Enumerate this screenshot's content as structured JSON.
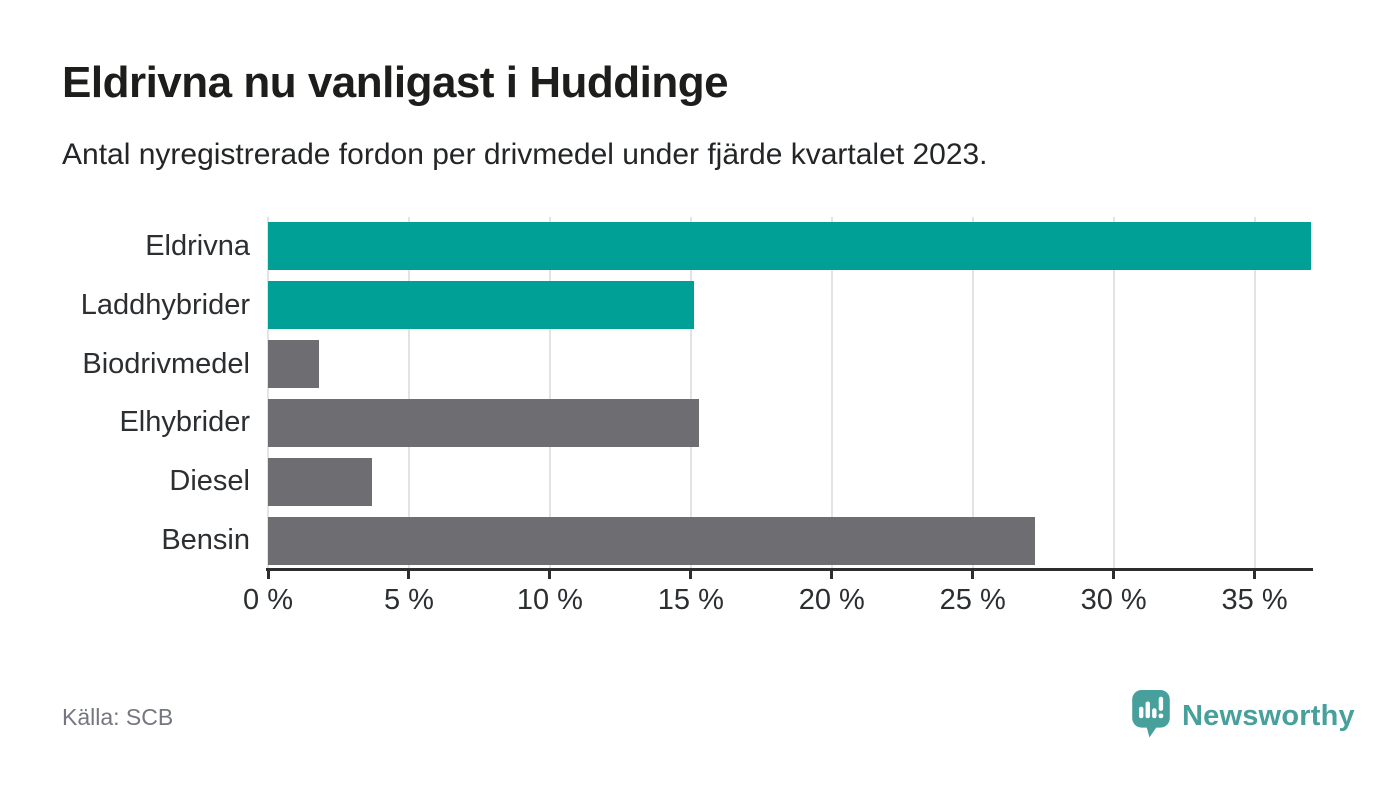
{
  "header": {
    "title": "Eldrivna nu vanligast i Huddinge",
    "subtitle": "Antal nyregistrerade fordon per drivmedel under fjärde kvartalet 2023."
  },
  "footer": {
    "source": "Källa: SCB",
    "brand": "Newsworthy"
  },
  "colors": {
    "electric_teal": "#00a096",
    "fossil_gray": "#6d6d72",
    "gridline": "#e3e3e3",
    "axis": "#2d2d2d",
    "brand_teal": "#47a09c"
  },
  "icons": {
    "brand_icon": "newsworthy-chart-bubble-icon"
  },
  "chart_data": {
    "type": "bar",
    "orientation": "horizontal",
    "title": "Eldrivna nu vanligast i Huddinge",
    "subtitle": "Antal nyregistrerade fordon per drivmedel under fjärde kvartalet 2023.",
    "categories": [
      "Eldrivna",
      "Laddhybrider",
      "Biodrivmedel",
      "Elhybrider",
      "Diesel",
      "Bensin"
    ],
    "values": [
      37.0,
      15.1,
      1.8,
      15.3,
      3.7,
      27.2
    ],
    "unit": "%",
    "bar_colors": [
      "#00a096",
      "#00a096",
      "#6d6d72",
      "#6d6d72",
      "#6d6d72",
      "#6d6d72"
    ],
    "xlabel": "",
    "ylabel": "",
    "xlim": [
      0,
      37
    ],
    "xticks": [
      0,
      5,
      10,
      15,
      20,
      25,
      30,
      35
    ],
    "xtick_suffix": " %",
    "grid": true,
    "legend": false,
    "source": "Källa: SCB"
  }
}
